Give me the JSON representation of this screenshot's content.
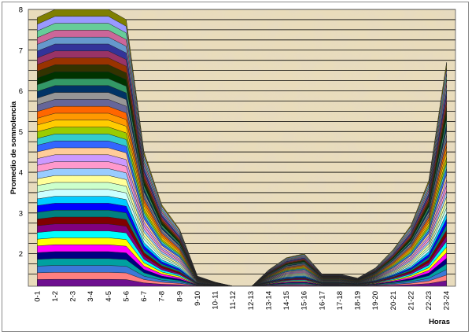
{
  "chart_data": {
    "type": "area",
    "stacked": true,
    "title": "",
    "xlabel": "Horas",
    "ylabel": "Promedio de somnolencia",
    "ylim": [
      1.2,
      8
    ],
    "y_ticks": [
      2,
      3,
      4,
      5,
      6,
      7,
      8
    ],
    "categories": [
      "0-1",
      "1-2",
      "2-3",
      "3-4",
      "4-5",
      "5-6",
      "6-7",
      "7-8",
      "8-9",
      "9-10",
      "10-11",
      "11-12",
      "12-13",
      "13-14",
      "14-15",
      "15-16",
      "16-17",
      "17-18",
      "18-19",
      "19-20",
      "20-21",
      "21-22",
      "22-23",
      "23-24"
    ],
    "total": [
      7.8,
      8.0,
      8.0,
      8.0,
      8.0,
      7.75,
      4.5,
      3.2,
      2.6,
      1.45,
      1.3,
      1.2,
      1.18,
      1.6,
      1.9,
      2.0,
      1.5,
      1.5,
      1.4,
      1.65,
      2.1,
      2.7,
      3.8,
      6.7
    ],
    "series_count": 40,
    "grid": true,
    "legend": "none",
    "palette": [
      "#6d0e8f",
      "#ff7f7f",
      "#3c78d8",
      "#00a0a0",
      "#000080",
      "#ff00ff",
      "#ffff00",
      "#00ffff",
      "#800080",
      "#800000",
      "#008080",
      "#0000ff",
      "#00ccff",
      "#ccffff",
      "#ccffcc",
      "#ffff99",
      "#99ccff",
      "#ff99cc",
      "#cc99ff",
      "#ffcc99",
      "#3366ff",
      "#33cccc",
      "#99cc00",
      "#ffcc00",
      "#ff9900",
      "#ff6600",
      "#666699",
      "#969696",
      "#003366",
      "#339966",
      "#003300",
      "#333300",
      "#993300",
      "#993366",
      "#333399",
      "#6699cc",
      "#cc6699",
      "#66cc99",
      "#9999ff",
      "#7f7f00"
    ],
    "plot_background": "#e9dcbb",
    "grid_color": "#000000"
  }
}
